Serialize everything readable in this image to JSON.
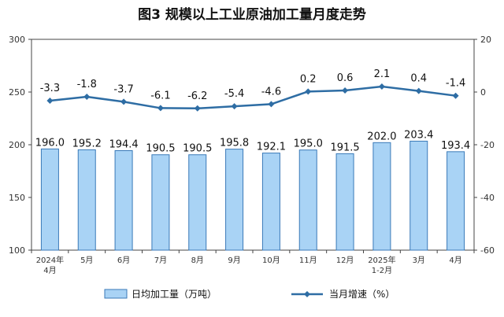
{
  "chart_data": {
    "type": "bar",
    "title": "图3  规模以上工业原油加工量月度走势",
    "categories": [
      [
        "2024年",
        "4月"
      ],
      [
        "5月"
      ],
      [
        "6月"
      ],
      [
        "7月"
      ],
      [
        "8月"
      ],
      [
        "9月"
      ],
      [
        "10月"
      ],
      [
        "11月"
      ],
      [
        "12月"
      ],
      [
        "2025年",
        "1-2月"
      ],
      [
        "3月"
      ],
      [
        "4月"
      ]
    ],
    "left_axis": {
      "ylim": [
        100,
        300
      ],
      "ticks": [
        "100",
        "150",
        "200",
        "250",
        "300"
      ]
    },
    "right_axis": {
      "ylim": [
        -60,
        20
      ],
      "ticks": [
        "-60",
        "-40",
        "-20",
        "0",
        "20"
      ]
    },
    "grid": false,
    "legend_position": "bottom",
    "series": [
      {
        "name": "日均加工量（万吨）",
        "type": "bar",
        "axis": "left",
        "values": [
          196.0,
          195.2,
          194.4,
          190.5,
          190.5,
          195.8,
          192.1,
          195.0,
          191.5,
          202.0,
          203.4,
          193.4
        ],
        "labels": [
          "196.0",
          "195.2",
          "194.4",
          "190.5",
          "190.5",
          "195.8",
          "192.1",
          "195.0",
          "191.5",
          "202.0",
          "203.4",
          "193.4"
        ],
        "color": "#a9d3f5"
      },
      {
        "name": "当月增速（%）",
        "type": "line",
        "axis": "right",
        "values": [
          -3.3,
          -1.8,
          -3.7,
          -6.1,
          -6.2,
          -5.4,
          -4.6,
          0.2,
          0.6,
          2.1,
          0.4,
          -1.4
        ],
        "labels": [
          "-3.3",
          "-1.8",
          "-3.7",
          "-6.1",
          "-6.2",
          "-5.4",
          "-4.6",
          "0.2",
          "0.6",
          "2.1",
          "0.4",
          "-1.4"
        ],
        "color": "#2e6da4"
      }
    ]
  }
}
